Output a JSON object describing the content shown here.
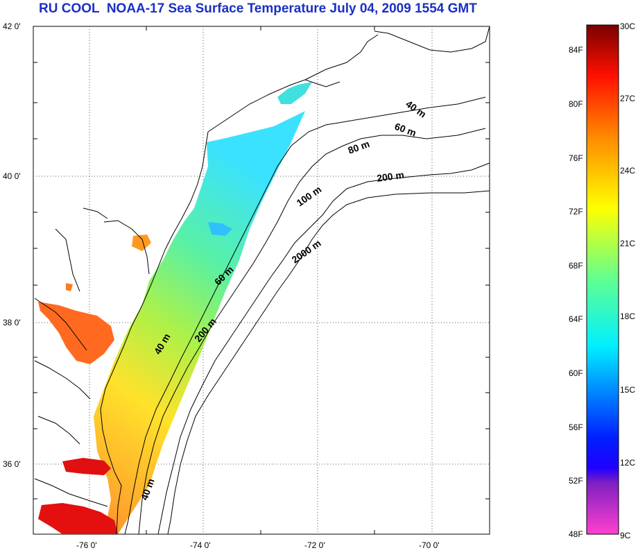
{
  "title": "RU COOL  NOAA-17 Sea Surface Temperature July 04, 2009 1554 GMT",
  "map": {
    "lat_labels": [
      "42 0'",
      "40 0'",
      "38 0'",
      "36 0'"
    ],
    "lon_labels": [
      "-76 0'",
      "-74 0'",
      "-72 0'",
      "-70 0'"
    ],
    "contour_labels": [
      "40 m",
      "60 m",
      "80 m",
      "200 m",
      "100 m",
      "2000 m",
      "60 m",
      "200 m",
      "40 m",
      "40 m"
    ]
  },
  "colorbar": {
    "fahrenheit": [
      "84F",
      "80F",
      "76F",
      "72F",
      "68F",
      "64F",
      "60F",
      "56F",
      "52F",
      "48F"
    ],
    "celsius": [
      "30C",
      "27C",
      "24C",
      "21C",
      "18C",
      "15C",
      "12C",
      "9C"
    ],
    "colors": {
      "max": "#7a0000",
      "red": "#ff0000",
      "orange": "#ff8a00",
      "yellow": "#ffff00",
      "green": "#70ff70",
      "cyan": "#00ffff",
      "blue": "#0010ff",
      "purple": "#8020c0",
      "pink": "#ff40d0"
    }
  }
}
